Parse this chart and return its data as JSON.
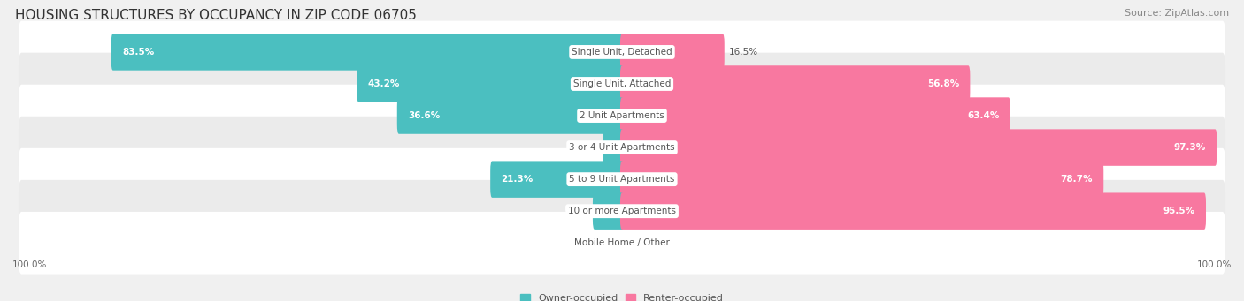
{
  "title": "HOUSING STRUCTURES BY OCCUPANCY IN ZIP CODE 06705",
  "source": "Source: ZipAtlas.com",
  "categories": [
    "Single Unit, Detached",
    "Single Unit, Attached",
    "2 Unit Apartments",
    "3 or 4 Unit Apartments",
    "5 to 9 Unit Apartments",
    "10 or more Apartments",
    "Mobile Home / Other"
  ],
  "owner_pct": [
    83.5,
    43.2,
    36.6,
    2.8,
    21.3,
    4.5,
    0.0
  ],
  "renter_pct": [
    16.5,
    56.8,
    63.4,
    97.3,
    78.7,
    95.5,
    0.0
  ],
  "owner_color": "#4bbfc0",
  "renter_color": "#f878a0",
  "row_even_color": "#ffffff",
  "row_odd_color": "#ebebeb",
  "title_fontsize": 11,
  "source_fontsize": 8,
  "label_fontsize": 7.5,
  "bar_label_fontsize": 7.5,
  "legend_fontsize": 8,
  "axis_label_fontsize": 7.5,
  "label_dark_color": "#555555",
  "label_white_color": "#ffffff"
}
